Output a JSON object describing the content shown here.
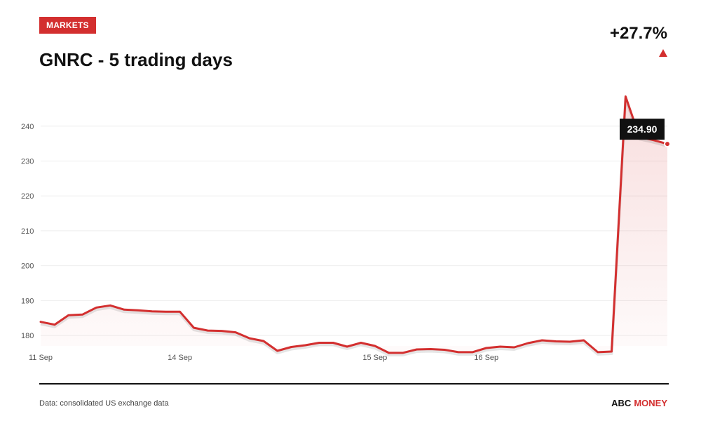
{
  "header": {
    "badge": "MARKETS",
    "title": "GNRC - 5 trading days",
    "change": "+27.7%",
    "change_direction": "up"
  },
  "footer": {
    "source": "Data: consolidated US exchange data",
    "brand_primary": "ABC",
    "brand_secondary": "MONEY"
  },
  "colors": {
    "accent": "#d32f2f",
    "text": "#111111",
    "grid": "#eeeeee",
    "axis_text": "#555555"
  },
  "chart_data": {
    "type": "area",
    "title": "GNRC - 5 trading days",
    "xlabel": "",
    "ylabel": "",
    "ylim": [
      177,
      248
    ],
    "yticks": [
      180,
      190,
      200,
      210,
      220,
      230,
      240
    ],
    "grid": true,
    "xtick_labels": [
      {
        "label": "11 Sep",
        "index": 0
      },
      {
        "label": "14 Sep",
        "index": 10
      },
      {
        "label": "15 Sep",
        "index": 24
      },
      {
        "label": "16 Sep",
        "index": 32
      }
    ],
    "series": [
      {
        "values": [
          183.9,
          183.1,
          185.8,
          186.0,
          188.0,
          188.6,
          187.4,
          187.2,
          186.9,
          186.8,
          186.8,
          182.2,
          181.4,
          181.3,
          180.9,
          179.2,
          178.4,
          175.6,
          176.7,
          177.2,
          177.9,
          177.9,
          176.8,
          177.9,
          177.0,
          175.0,
          175.0,
          176.0,
          176.1,
          175.9,
          175.2,
          175.2,
          176.4,
          176.8,
          176.6,
          177.8,
          178.6,
          178.3,
          178.2,
          178.6,
          175.2,
          175.4,
          248.5,
          236.9,
          236.0,
          234.9
        ]
      }
    ],
    "last_value_label": "234.90"
  }
}
